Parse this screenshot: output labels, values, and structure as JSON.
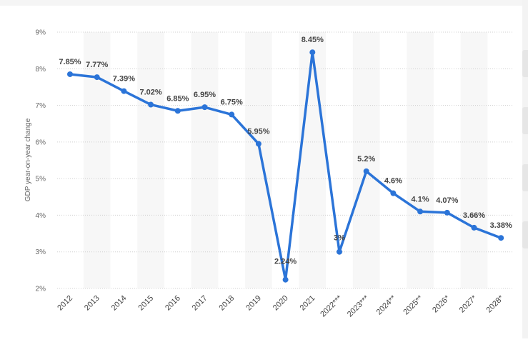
{
  "chart_data": {
    "type": "line",
    "ylabel": "GDP year-on-year change",
    "xlabel": "",
    "ylim": [
      2,
      9
    ],
    "yticks": [
      "2%",
      "3%",
      "4%",
      "5%",
      "6%",
      "7%",
      "8%",
      "9%"
    ],
    "ytick_values": [
      2,
      3,
      4,
      5,
      6,
      7,
      8,
      9
    ],
    "categories": [
      "2012",
      "2013",
      "2014",
      "2015",
      "2016",
      "2017",
      "2018",
      "2019",
      "2020",
      "2021",
      "2022***",
      "2023***",
      "2024**",
      "2025**",
      "2026*",
      "2027*",
      "2028*"
    ],
    "values": [
      7.85,
      7.77,
      7.39,
      7.02,
      6.85,
      6.95,
      6.75,
      5.95,
      2.24,
      8.45,
      3.0,
      5.2,
      4.6,
      4.1,
      4.07,
      3.66,
      3.38
    ],
    "data_labels": [
      "7.85%",
      "7.77%",
      "7.39%",
      "7.02%",
      "6.85%",
      "6.95%",
      "6.75%",
      "5.95%",
      "2.24%",
      "8.45%",
      "3%",
      "5.2%",
      "4.6%",
      "4.1%",
      "4.07%",
      "3.66%",
      "3.38%"
    ],
    "grid": true,
    "colors": {
      "line": "#2b74d8",
      "stripe": "#f7f7f7",
      "grid": "#d0d0d0"
    }
  }
}
